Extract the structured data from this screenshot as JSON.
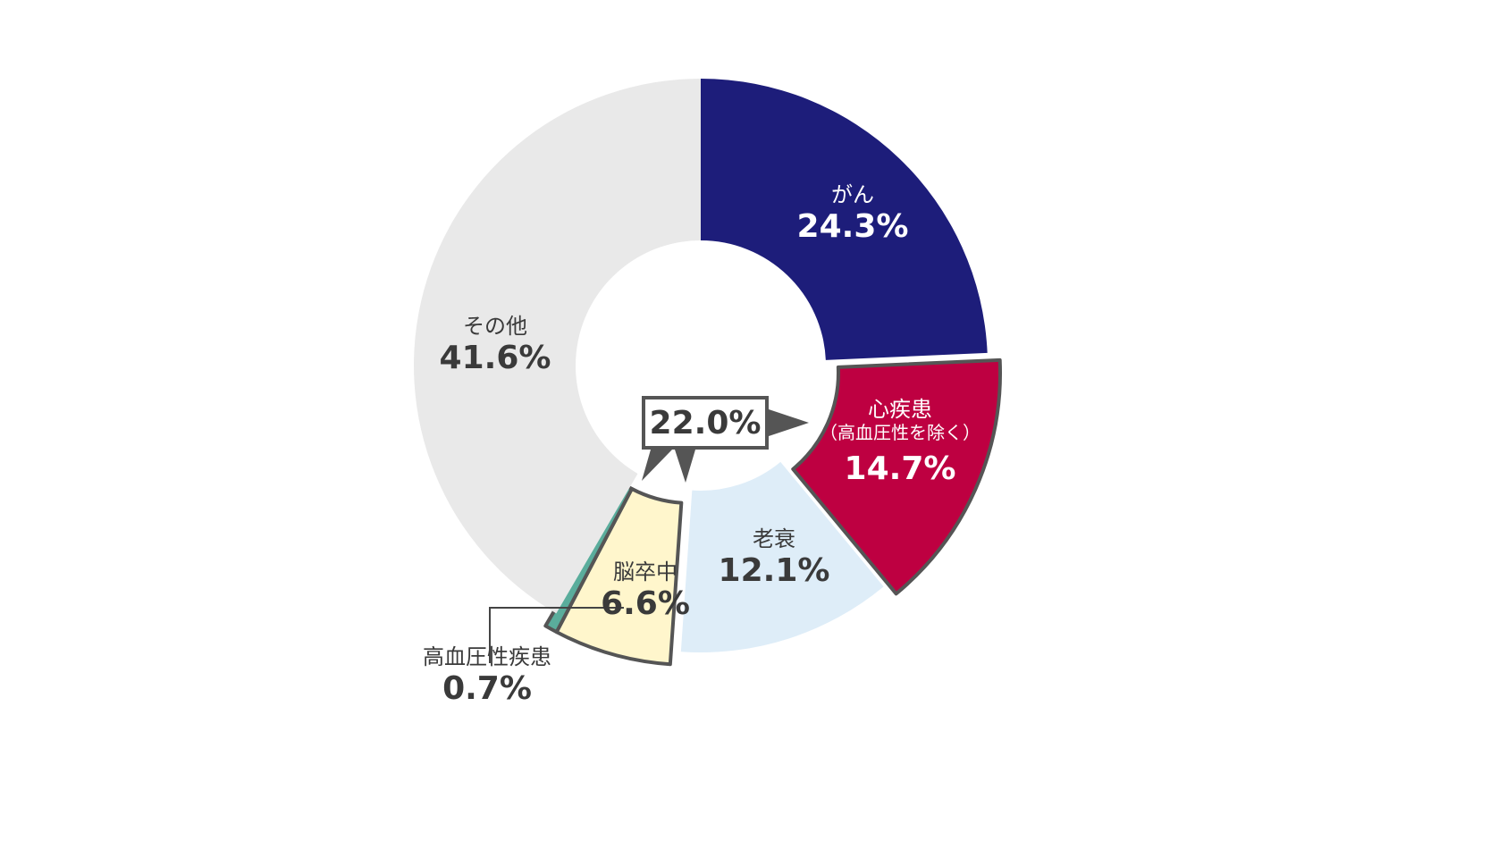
{
  "chart_data": {
    "type": "pie",
    "variant": "donut",
    "title": "",
    "start_angle_deg": 0,
    "direction": "clockwise",
    "slices": [
      {
        "key": "cancer",
        "label": "がん",
        "value": 24.3,
        "value_label": "24.3%",
        "color": "#1d1d7a",
        "text_color": "#ffffff"
      },
      {
        "key": "heart",
        "label": "心疾患",
        "sublabel": "（高血圧性を除く）",
        "value": 14.7,
        "value_label": "14.7%",
        "color": "#be0041",
        "text_color": "#ffffff",
        "exploded": true
      },
      {
        "key": "senility",
        "label": "老衰",
        "value": 12.1,
        "value_label": "12.1%",
        "color": "#deedf8",
        "text_color": "#3a3a3a"
      },
      {
        "key": "stroke",
        "label": "脳卒中",
        "value": 6.6,
        "value_label": "6.6%",
        "color": "#fff6cc",
        "text_color": "#3a3a3a",
        "exploded": true
      },
      {
        "key": "hypertensive",
        "label": "高血圧性疾患",
        "value": 0.7,
        "value_label": "0.7%",
        "color": "#5aad9c",
        "text_color": "#3a3a3a",
        "exploded": true,
        "label_outside": true
      },
      {
        "key": "other",
        "label": "その他",
        "value": 41.6,
        "value_label": "41.6%",
        "color": "#e9e9e9",
        "text_color": "#3a3a3a"
      }
    ],
    "annotations": [
      {
        "text": "22.0%",
        "meaning": "combined circulatory diseases (心疾患 + 脳卒中 + 高血圧性疾患)",
        "outline_color": "#555555"
      }
    ],
    "legend": "none"
  }
}
